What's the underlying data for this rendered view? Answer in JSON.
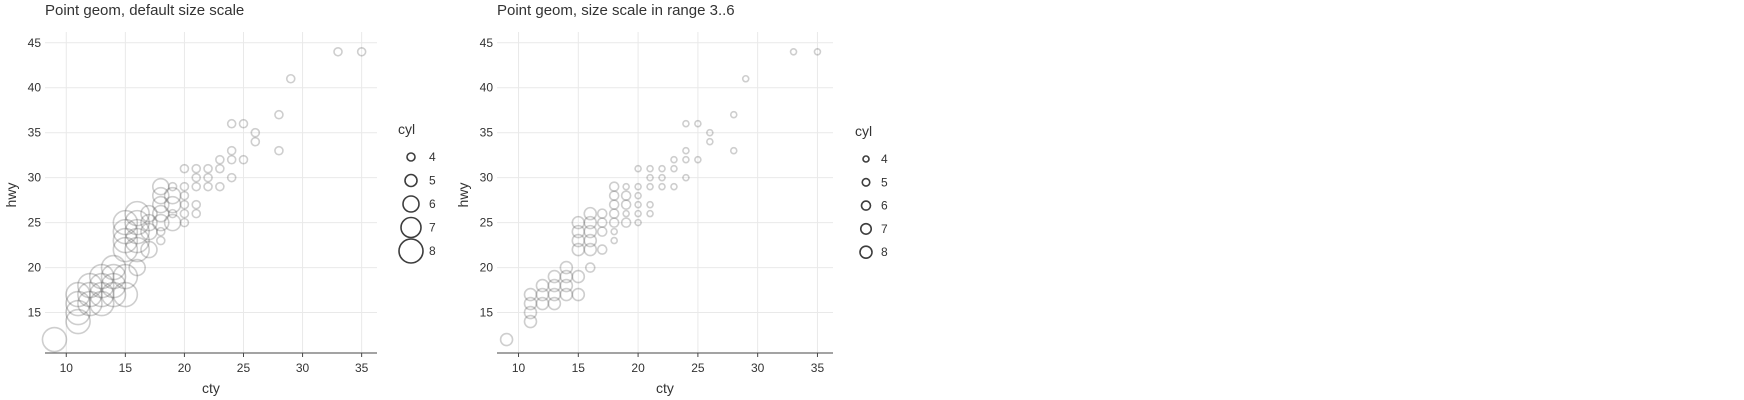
{
  "chart_data": [
    {
      "type": "scatter",
      "title": "Point geom, default size scale",
      "xlabel": "cty",
      "ylabel": "hwy",
      "xlim": [
        8.2,
        36.3
      ],
      "ylim": [
        10.5,
        46.2
      ],
      "xticks": [
        10,
        15,
        20,
        25,
        30,
        35
      ],
      "yticks": [
        15,
        20,
        25,
        30,
        35,
        40,
        45
      ],
      "grid": true,
      "size_range": [
        4,
        12
      ],
      "legend": {
        "title": "cyl",
        "placement": "right",
        "entries": [
          {
            "label": "4",
            "value": 4
          },
          {
            "label": "5",
            "value": 5
          },
          {
            "label": "6",
            "value": 6
          },
          {
            "label": "7",
            "value": 7
          },
          {
            "label": "8",
            "value": 8
          }
        ]
      },
      "points": [
        {
          "x": 9,
          "y": 12,
          "cyl": 8
        },
        {
          "x": 11,
          "y": 14,
          "cyl": 8
        },
        {
          "x": 11,
          "y": 15,
          "cyl": 8
        },
        {
          "x": 11,
          "y": 16,
          "cyl": 8
        },
        {
          "x": 11,
          "y": 17,
          "cyl": 8
        },
        {
          "x": 12,
          "y": 16,
          "cyl": 8
        },
        {
          "x": 12,
          "y": 17,
          "cyl": 8
        },
        {
          "x": 12,
          "y": 18,
          "cyl": 8
        },
        {
          "x": 13,
          "y": 16,
          "cyl": 8
        },
        {
          "x": 13,
          "y": 17,
          "cyl": 8
        },
        {
          "x": 13,
          "y": 18,
          "cyl": 8
        },
        {
          "x": 13,
          "y": 19,
          "cyl": 8
        },
        {
          "x": 14,
          "y": 17,
          "cyl": 8
        },
        {
          "x": 14,
          "y": 18,
          "cyl": 8
        },
        {
          "x": 14,
          "y": 19,
          "cyl": 8
        },
        {
          "x": 14,
          "y": 20,
          "cyl": 8
        },
        {
          "x": 15,
          "y": 17,
          "cyl": 8
        },
        {
          "x": 15,
          "y": 19,
          "cyl": 8
        },
        {
          "x": 15,
          "y": 22,
          "cyl": 8
        },
        {
          "x": 15,
          "y": 23,
          "cyl": 8
        },
        {
          "x": 15,
          "y": 24,
          "cyl": 8
        },
        {
          "x": 15,
          "y": 25,
          "cyl": 8
        },
        {
          "x": 16,
          "y": 20,
          "cyl": 6
        },
        {
          "x": 16,
          "y": 22,
          "cyl": 8
        },
        {
          "x": 16,
          "y": 23,
          "cyl": 8
        },
        {
          "x": 16,
          "y": 24,
          "cyl": 8
        },
        {
          "x": 16,
          "y": 25,
          "cyl": 8
        },
        {
          "x": 16,
          "y": 26,
          "cyl": 8
        },
        {
          "x": 17,
          "y": 22,
          "cyl": 6
        },
        {
          "x": 17,
          "y": 24,
          "cyl": 6
        },
        {
          "x": 17,
          "y": 25,
          "cyl": 6
        },
        {
          "x": 17,
          "y": 26,
          "cyl": 6
        },
        {
          "x": 18,
          "y": 23,
          "cyl": 4
        },
        {
          "x": 18,
          "y": 24,
          "cyl": 4
        },
        {
          "x": 18,
          "y": 25,
          "cyl": 6
        },
        {
          "x": 18,
          "y": 26,
          "cyl": 6
        },
        {
          "x": 18,
          "y": 27,
          "cyl": 6
        },
        {
          "x": 18,
          "y": 28,
          "cyl": 6
        },
        {
          "x": 18,
          "y": 29,
          "cyl": 6
        },
        {
          "x": 19,
          "y": 25,
          "cyl": 6
        },
        {
          "x": 19,
          "y": 26,
          "cyl": 4
        },
        {
          "x": 19,
          "y": 27,
          "cyl": 6
        },
        {
          "x": 19,
          "y": 28,
          "cyl": 6
        },
        {
          "x": 19,
          "y": 29,
          "cyl": 4
        },
        {
          "x": 20,
          "y": 25,
          "cyl": 4
        },
        {
          "x": 20,
          "y": 26,
          "cyl": 4
        },
        {
          "x": 20,
          "y": 27,
          "cyl": 4
        },
        {
          "x": 20,
          "y": 28,
          "cyl": 4
        },
        {
          "x": 20,
          "y": 29,
          "cyl": 4
        },
        {
          "x": 20,
          "y": 31,
          "cyl": 4
        },
        {
          "x": 21,
          "y": 26,
          "cyl": 4
        },
        {
          "x": 21,
          "y": 27,
          "cyl": 4
        },
        {
          "x": 21,
          "y": 29,
          "cyl": 4
        },
        {
          "x": 21,
          "y": 30,
          "cyl": 4
        },
        {
          "x": 21,
          "y": 31,
          "cyl": 4
        },
        {
          "x": 22,
          "y": 29,
          "cyl": 4
        },
        {
          "x": 22,
          "y": 30,
          "cyl": 4
        },
        {
          "x": 22,
          "y": 31,
          "cyl": 4
        },
        {
          "x": 23,
          "y": 29,
          "cyl": 4
        },
        {
          "x": 23,
          "y": 31,
          "cyl": 4
        },
        {
          "x": 23,
          "y": 32,
          "cyl": 4
        },
        {
          "x": 24,
          "y": 30,
          "cyl": 4
        },
        {
          "x": 24,
          "y": 32,
          "cyl": 4
        },
        {
          "x": 24,
          "y": 33,
          "cyl": 4
        },
        {
          "x": 24,
          "y": 36,
          "cyl": 4
        },
        {
          "x": 25,
          "y": 32,
          "cyl": 4
        },
        {
          "x": 25,
          "y": 36,
          "cyl": 4
        },
        {
          "x": 26,
          "y": 34,
          "cyl": 4
        },
        {
          "x": 26,
          "y": 35,
          "cyl": 4
        },
        {
          "x": 28,
          "y": 33,
          "cyl": 4
        },
        {
          "x": 28,
          "y": 37,
          "cyl": 4
        },
        {
          "x": 29,
          "y": 41,
          "cyl": 4
        },
        {
          "x": 33,
          "y": 44,
          "cyl": 4
        },
        {
          "x": 35,
          "y": 44,
          "cyl": 4
        }
      ]
    },
    {
      "type": "scatter",
      "title": "Point geom, size scale in range 3..6",
      "xlabel": "cty",
      "ylabel": "hwy",
      "xlim": [
        8.2,
        36.3
      ],
      "ylim": [
        10.5,
        46.2
      ],
      "xticks": [
        10,
        15,
        20,
        25,
        30,
        35
      ],
      "yticks": [
        15,
        20,
        25,
        30,
        35,
        40,
        45
      ],
      "grid": true,
      "size_range": [
        3,
        6
      ],
      "legend": {
        "title": "cyl",
        "placement": "right",
        "entries": [
          {
            "label": "4",
            "value": 4
          },
          {
            "label": "5",
            "value": 5
          },
          {
            "label": "6",
            "value": 6
          },
          {
            "label": "7",
            "value": 7
          },
          {
            "label": "8",
            "value": 8
          }
        ]
      },
      "points": "same as chart 1"
    }
  ],
  "colors": {
    "grid": "#e9e9e9",
    "axis": "#474747",
    "point_stroke": "#3d3d3d",
    "text": "#333333"
  }
}
